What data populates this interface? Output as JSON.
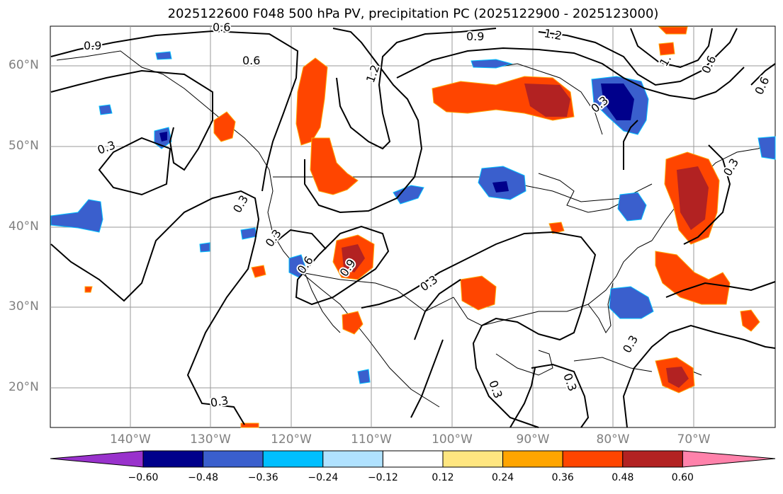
{
  "title": "2025122600 F048 500 hPa PV, precipitation PC (2025122900 - 2025123000)",
  "lat_labels": [
    "60°N",
    "50°N",
    "40°N",
    "30°N",
    "20°N"
  ],
  "lon_labels": [
    "140°W",
    "130°W",
    "120°W",
    "110°W",
    "100°W",
    "90°W",
    "80°W",
    "70°W"
  ],
  "pv_contour_labels": [
    "0.9",
    "0.6",
    "0.6",
    "1.2",
    "0.9",
    "0.3",
    "0.3",
    "0.3",
    "0.6",
    "0.9",
    "0.3",
    "0.3",
    "0.3",
    "0.3",
    "0.3",
    "0.3",
    "1.2",
    "0.6",
    "0.6",
    "1.",
    "0.3"
  ],
  "colorbar": {
    "ticks": [
      "−0.60",
      "−0.48",
      "−0.36",
      "−0.24",
      "−0.12",
      "0.12",
      "0.24",
      "0.36",
      "0.48",
      "0.60"
    ],
    "colors": [
      "#9932cc",
      "#00008b",
      "#3a5fcd",
      "#00bfff",
      "#b0e2ff",
      "#ffffff",
      "#ffe680",
      "#ffa500",
      "#ff4500",
      "#b22222",
      "#ff82ab"
    ]
  },
  "precip_colors": {
    "strong_negative": "#00008b",
    "negative": "#3a5fcd",
    "weak_negative": "#00bfff",
    "positive": "#ff4500",
    "strong_positive": "#b22222",
    "weak_positive": "#ffa500"
  }
}
